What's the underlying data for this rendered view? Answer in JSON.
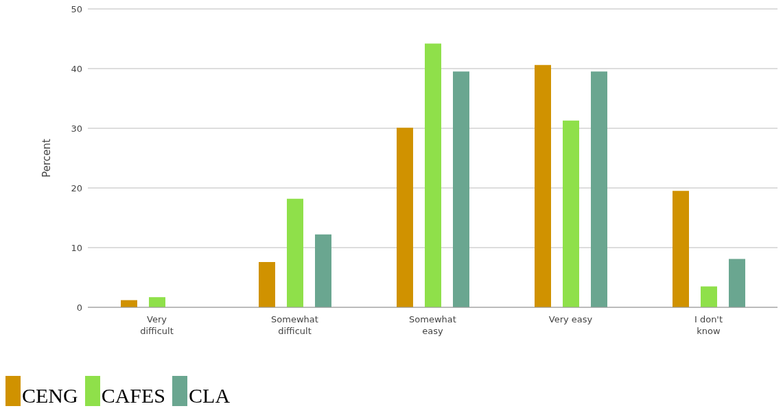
{
  "chart_data": {
    "type": "bar",
    "ylabel": "Percent",
    "categories": [
      "Very difficult",
      "Somewhat difficult",
      "Somewhat easy",
      "Very easy",
      "I don't know"
    ],
    "series": [
      {
        "name": "CENG",
        "color": "#d09200",
        "values": [
          1.2,
          7.6,
          30.1,
          40.6,
          19.5
        ]
      },
      {
        "name": "CAFES",
        "color": "#8fe04a",
        "values": [
          1.7,
          18.2,
          44.2,
          31.3,
          3.5
        ]
      },
      {
        "name": "CLA",
        "color": "#6aa690",
        "values": [
          0,
          12.2,
          39.5,
          39.5,
          8.1
        ]
      }
    ],
    "ylim": [
      0,
      50
    ],
    "yticks": [
      0,
      10,
      20,
      30,
      40,
      50
    ],
    "grid": "y",
    "legend": "bottom left"
  }
}
